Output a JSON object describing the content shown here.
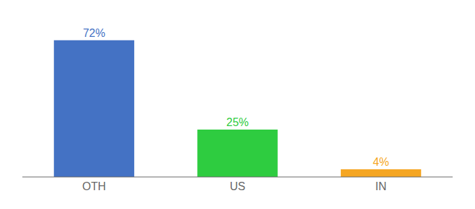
{
  "chart_data": {
    "type": "bar",
    "categories": [
      "OTH",
      "US",
      "IN"
    ],
    "values": [
      72,
      25,
      4
    ],
    "value_labels": [
      "72%",
      "25%",
      "4%"
    ],
    "colors": [
      "#4472c4",
      "#2ecc40",
      "#f5a623"
    ],
    "ylim": [
      0,
      80
    ],
    "data_labels": true,
    "tick_labels": "x",
    "grid": false
  }
}
